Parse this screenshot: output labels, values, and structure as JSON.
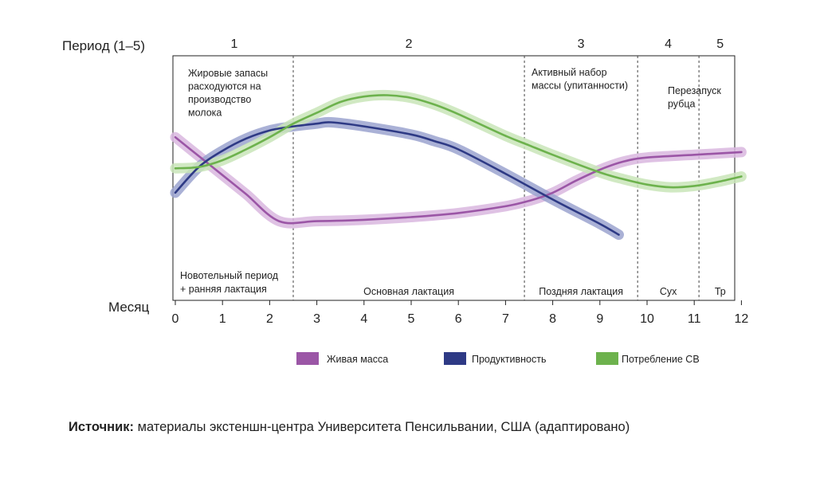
{
  "chart_data": {
    "type": "line",
    "xlabel": "Месяц",
    "period_label": "Период (1–5)",
    "x_ticks": [
      0,
      1,
      2,
      3,
      4,
      5,
      6,
      7,
      8,
      9,
      10,
      11,
      12
    ],
    "xlim": [
      0,
      12
    ],
    "legend_position": "bottom",
    "periods": [
      {
        "label": "1",
        "start": 0,
        "end": 2.5,
        "top_note": "Жировые запасы\nрасходуются на\nпроизводство\nмолока",
        "bottom_note": "Новотельный период\n+ ранняя лактация"
      },
      {
        "label": "2",
        "start": 2.5,
        "end": 7.4,
        "top_note": "",
        "bottom_note": "Основная лактация"
      },
      {
        "label": "3",
        "start": 7.4,
        "end": 9.8,
        "top_note": "Активный набор\nмассы (упитанности)",
        "bottom_note": "Поздняя лактация"
      },
      {
        "label": "4",
        "start": 9.8,
        "end": 11.1,
        "top_note": "Перезапуск\nрубца",
        "bottom_note": "Сух"
      },
      {
        "label": "5",
        "start": 11.1,
        "end": 12,
        "top_note": "",
        "bottom_note": "Тр"
      }
    ],
    "series": [
      {
        "name": "Живая масса",
        "color": "#9b56a6",
        "glow": "#d9b7df",
        "points": [
          [
            0,
            84
          ],
          [
            0.5,
            70
          ],
          [
            1,
            56
          ],
          [
            1.5,
            42
          ],
          [
            2.2,
            22
          ],
          [
            3,
            22
          ],
          [
            4,
            23
          ],
          [
            5,
            25
          ],
          [
            6,
            28
          ],
          [
            7,
            33
          ],
          [
            7.5,
            37
          ],
          [
            8,
            43
          ],
          [
            8.5,
            52
          ],
          [
            9,
            60
          ],
          [
            9.5,
            66
          ],
          [
            10,
            69
          ],
          [
            11,
            71
          ],
          [
            12,
            73
          ]
        ]
      },
      {
        "name": "Продуктивность",
        "color": "#2e3a85",
        "glow": "#9ba3cf",
        "points": [
          [
            0,
            43
          ],
          [
            0.5,
            62
          ],
          [
            1,
            74
          ],
          [
            1.5,
            83
          ],
          [
            2,
            89
          ],
          [
            2.5,
            92
          ],
          [
            3,
            94
          ],
          [
            3.3,
            95
          ],
          [
            4,
            92
          ],
          [
            5,
            86
          ],
          [
            5.5,
            81
          ],
          [
            6,
            75
          ],
          [
            7,
            57
          ],
          [
            8,
            38
          ],
          [
            9,
            20
          ],
          [
            9.4,
            12
          ]
        ]
      },
      {
        "name": "Потребление СВ",
        "color": "#6db24d",
        "glow": "#c9e5b8",
        "points": [
          [
            0,
            61
          ],
          [
            0.5,
            62
          ],
          [
            1,
            67
          ],
          [
            1.5,
            75
          ],
          [
            2,
            84
          ],
          [
            2.5,
            94
          ],
          [
            3,
            102
          ],
          [
            3.5,
            110
          ],
          [
            4,
            114
          ],
          [
            4.5,
            115
          ],
          [
            5,
            113
          ],
          [
            5.5,
            108
          ],
          [
            6,
            101
          ],
          [
            7,
            85
          ],
          [
            7.5,
            78
          ],
          [
            8,
            71
          ],
          [
            9,
            58
          ],
          [
            9.5,
            53
          ],
          [
            10,
            49
          ],
          [
            10.5,
            47
          ],
          [
            11,
            48
          ],
          [
            11.5,
            51
          ],
          [
            12,
            55
          ]
        ]
      }
    ]
  },
  "source": {
    "prefix": "Источник:",
    "text": " материалы экстеншн-центра Университета Пенсильвании, США (адаптировано)"
  }
}
